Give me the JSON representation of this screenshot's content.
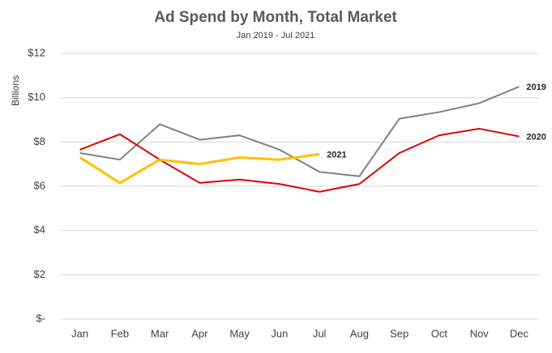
{
  "chart_data": {
    "type": "line",
    "title": "Ad Spend by Month, Total Market",
    "subtitle": "Jan 2019 - Jul 2021",
    "y_label": "Billions",
    "categories": [
      "Jan",
      "Feb",
      "Mar",
      "Apr",
      "May",
      "Jun",
      "Jul",
      "Aug",
      "Sep",
      "Oct",
      "Nov",
      "Dec"
    ],
    "series": [
      {
        "name": "2019",
        "color": "#808080",
        "values": [
          7.5,
          7.2,
          8.8,
          8.1,
          8.3,
          7.65,
          6.65,
          6.45,
          9.05,
          9.35,
          9.75,
          10.5
        ]
      },
      {
        "name": "2020",
        "color": "#e00000",
        "values": [
          7.65,
          8.35,
          7.2,
          6.15,
          6.3,
          6.1,
          5.75,
          6.1,
          7.5,
          8.3,
          8.6,
          8.25
        ]
      },
      {
        "name": "2021",
        "color": "#ffc000",
        "values": [
          7.3,
          6.15,
          7.2,
          7.0,
          7.3,
          7.2,
          7.45,
          null,
          null,
          null,
          null,
          null
        ]
      }
    ],
    "ylim": [
      0,
      12
    ],
    "yticks": [
      {
        "value": 0,
        "label": "$-"
      },
      {
        "value": 2,
        "label": "$2"
      },
      {
        "value": 4,
        "label": "$4"
      },
      {
        "value": 6,
        "label": "$6"
      },
      {
        "value": 8,
        "label": "$8"
      },
      {
        "value": 10,
        "label": "$10"
      },
      {
        "value": 12,
        "label": "$12"
      }
    ],
    "grid": true
  }
}
